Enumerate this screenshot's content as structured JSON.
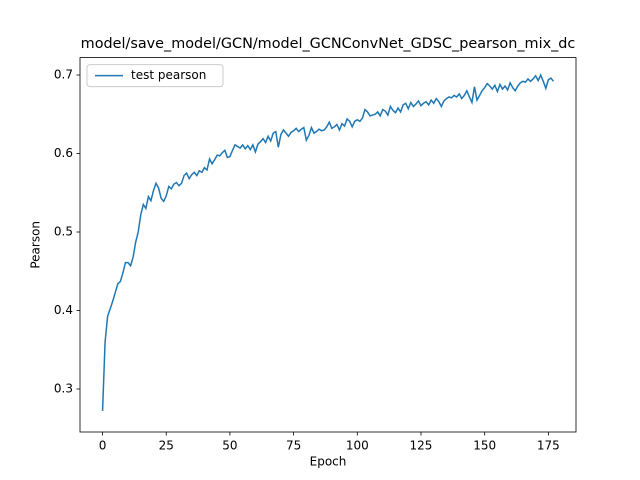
{
  "chart_data": {
    "type": "line",
    "title": "model/save_model/GCN/model_GCNConvNet_GDSC_pearson_mix_dc",
    "xlabel": "Epoch",
    "ylabel": "Pearson",
    "x": [
      0,
      1,
      2,
      3,
      4,
      5,
      6,
      7,
      8,
      9,
      10,
      11,
      12,
      13,
      14,
      15,
      16,
      17,
      18,
      19,
      20,
      21,
      22,
      23,
      24,
      25,
      26,
      27,
      28,
      29,
      30,
      31,
      32,
      33,
      34,
      35,
      36,
      37,
      38,
      39,
      40,
      41,
      42,
      43,
      44,
      45,
      46,
      47,
      48,
      49,
      50,
      51,
      52,
      53,
      54,
      55,
      56,
      57,
      58,
      59,
      60,
      61,
      62,
      63,
      64,
      65,
      66,
      67,
      68,
      69,
      70,
      71,
      72,
      73,
      74,
      75,
      76,
      77,
      78,
      79,
      80,
      81,
      82,
      83,
      84,
      85,
      86,
      87,
      88,
      89,
      90,
      91,
      92,
      93,
      94,
      95,
      96,
      97,
      98,
      99,
      100,
      101,
      102,
      103,
      104,
      105,
      106,
      107,
      108,
      109,
      110,
      111,
      112,
      113,
      114,
      115,
      116,
      117,
      118,
      119,
      120,
      121,
      122,
      123,
      124,
      125,
      126,
      127,
      128,
      129,
      130,
      131,
      132,
      133,
      134,
      135,
      136,
      137,
      138,
      139,
      140,
      141,
      142,
      143,
      144,
      145,
      146,
      147,
      148,
      149,
      150,
      151,
      152,
      153,
      154,
      155,
      156,
      157,
      158,
      159,
      160,
      161,
      162,
      163,
      164,
      165,
      166,
      167,
      168,
      169,
      170,
      171,
      172,
      173,
      174,
      175,
      176,
      177
    ],
    "series": [
      {
        "name": "test pearson",
        "color": "#1f77b4",
        "values": [
          0.272,
          0.36,
          0.393,
          0.402,
          0.412,
          0.423,
          0.434,
          0.437,
          0.448,
          0.461,
          0.461,
          0.457,
          0.468,
          0.487,
          0.5,
          0.522,
          0.535,
          0.53,
          0.545,
          0.54,
          0.553,
          0.562,
          0.556,
          0.543,
          0.539,
          0.546,
          0.558,
          0.555,
          0.561,
          0.563,
          0.559,
          0.562,
          0.572,
          0.575,
          0.568,
          0.573,
          0.576,
          0.572,
          0.578,
          0.576,
          0.582,
          0.579,
          0.593,
          0.587,
          0.592,
          0.598,
          0.597,
          0.601,
          0.604,
          0.595,
          0.596,
          0.604,
          0.611,
          0.609,
          0.607,
          0.611,
          0.606,
          0.61,
          0.605,
          0.611,
          0.602,
          0.612,
          0.615,
          0.619,
          0.614,
          0.622,
          0.616,
          0.626,
          0.628,
          0.608,
          0.624,
          0.63,
          0.626,
          0.622,
          0.627,
          0.629,
          0.632,
          0.628,
          0.631,
          0.633,
          0.617,
          0.623,
          0.633,
          0.626,
          0.628,
          0.631,
          0.629,
          0.63,
          0.634,
          0.64,
          0.632,
          0.634,
          0.637,
          0.63,
          0.638,
          0.635,
          0.644,
          0.641,
          0.634,
          0.641,
          0.643,
          0.641,
          0.645,
          0.656,
          0.653,
          0.648,
          0.649,
          0.65,
          0.653,
          0.648,
          0.656,
          0.654,
          0.649,
          0.66,
          0.655,
          0.652,
          0.658,
          0.653,
          0.662,
          0.664,
          0.657,
          0.665,
          0.66,
          0.663,
          0.667,
          0.661,
          0.664,
          0.666,
          0.662,
          0.668,
          0.664,
          0.67,
          0.666,
          0.66,
          0.667,
          0.67,
          0.672,
          0.671,
          0.674,
          0.672,
          0.676,
          0.67,
          0.674,
          0.68,
          0.672,
          0.665,
          0.685,
          0.668,
          0.674,
          0.68,
          0.684,
          0.689,
          0.686,
          0.682,
          0.687,
          0.679,
          0.688,
          0.682,
          0.686,
          0.681,
          0.69,
          0.684,
          0.68,
          0.686,
          0.69,
          0.692,
          0.691,
          0.695,
          0.692,
          0.695,
          0.699,
          0.693,
          0.7,
          0.692,
          0.683,
          0.694,
          0.696,
          0.692
        ]
      }
    ],
    "xlim": [
      -8.85,
      185.85
    ],
    "ylim": [
      0.2452,
      0.7222
    ],
    "xticks": [
      0,
      25,
      50,
      75,
      100,
      125,
      150,
      175
    ],
    "yticks": [
      0.3,
      0.4,
      0.5,
      0.6,
      0.7
    ],
    "legend": "upper left"
  }
}
